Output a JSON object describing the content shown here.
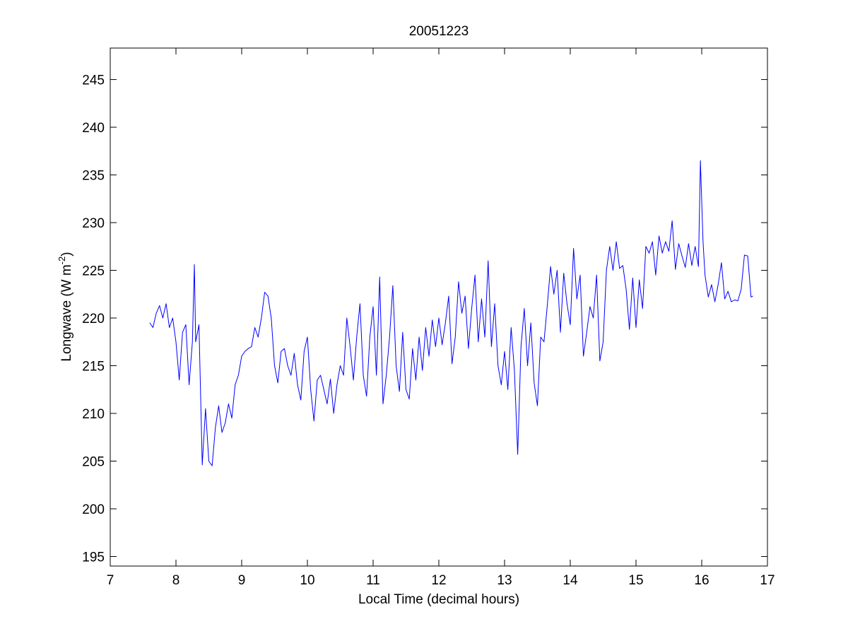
{
  "chart_data": {
    "type": "line",
    "title": "20051223",
    "xlabel": "Local Time (decimal hours)",
    "ylabel": {
      "text": "Longwave (W m",
      "superscript": "-2",
      "suffix": ")"
    },
    "xlim": [
      7,
      17
    ],
    "xticks": [
      7,
      8,
      9,
      10,
      11,
      12,
      13,
      14,
      15,
      16,
      17
    ],
    "ylim": [
      194,
      248.3
    ],
    "yticks": [
      195,
      200,
      205,
      210,
      215,
      220,
      225,
      230,
      235,
      240,
      245
    ],
    "grid": false,
    "series": [
      {
        "color": "#0000ff",
        "x": [
          7.6,
          7.65,
          7.7,
          7.75,
          7.8,
          7.85,
          7.9,
          7.95,
          8.0,
          8.05,
          8.1,
          8.15,
          8.2,
          8.25,
          8.28,
          8.3,
          8.35,
          8.4,
          8.45,
          8.5,
          8.55,
          8.6,
          8.65,
          8.7,
          8.75,
          8.8,
          8.85,
          8.9,
          8.95,
          9.0,
          9.05,
          9.1,
          9.15,
          9.2,
          9.25,
          9.3,
          9.35,
          9.4,
          9.45,
          9.5,
          9.55,
          9.6,
          9.65,
          9.7,
          9.75,
          9.8,
          9.85,
          9.9,
          9.95,
          10.0,
          10.05,
          10.1,
          10.15,
          10.2,
          10.25,
          10.3,
          10.35,
          10.4,
          10.45,
          10.5,
          10.55,
          10.6,
          10.65,
          10.7,
          10.75,
          10.8,
          10.85,
          10.9,
          10.95,
          11.0,
          11.05,
          11.1,
          11.15,
          11.2,
          11.25,
          11.3,
          11.35,
          11.4,
          11.45,
          11.5,
          11.55,
          11.6,
          11.65,
          11.7,
          11.75,
          11.8,
          11.85,
          11.9,
          11.95,
          12.0,
          12.05,
          12.1,
          12.15,
          12.2,
          12.25,
          12.3,
          12.35,
          12.4,
          12.45,
          12.5,
          12.55,
          12.6,
          12.65,
          12.7,
          12.75,
          12.8,
          12.85,
          12.9,
          12.95,
          13.0,
          13.05,
          13.1,
          13.15,
          13.2,
          13.25,
          13.3,
          13.35,
          13.4,
          13.45,
          13.5,
          13.55,
          13.6,
          13.65,
          13.7,
          13.75,
          13.8,
          13.85,
          13.9,
          13.95,
          14.0,
          14.05,
          14.1,
          14.15,
          14.2,
          14.25,
          14.3,
          14.35,
          14.4,
          14.45,
          14.5,
          14.55,
          14.6,
          14.65,
          14.7,
          14.75,
          14.8,
          14.85,
          14.9,
          14.95,
          15.0,
          15.05,
          15.1,
          15.15,
          15.2,
          15.25,
          15.3,
          15.35,
          15.4,
          15.45,
          15.5,
          15.55,
          15.6,
          15.65,
          15.7,
          15.75,
          15.8,
          15.85,
          15.9,
          15.95,
          15.98,
          16.02,
          16.05,
          16.1,
          16.15,
          16.2,
          16.25,
          16.3,
          16.35,
          16.4,
          16.45,
          16.5,
          16.55,
          16.6,
          16.65,
          16.7,
          16.75,
          16.78
        ],
        "values": [
          219.5,
          219,
          220.5,
          221.3,
          220,
          221.5,
          219,
          220,
          217.5,
          213.5,
          218.5,
          219.3,
          213,
          217.5,
          225.6,
          217.5,
          219.3,
          204.6,
          210.5,
          205,
          204.5,
          208.5,
          210.8,
          208,
          209,
          211,
          209.5,
          213,
          214,
          216,
          216.5,
          216.8,
          217,
          219,
          218,
          220,
          222.7,
          222.3,
          220,
          215,
          213.2,
          216.5,
          216.8,
          215,
          214,
          216.3,
          213,
          211.4,
          216.5,
          218,
          212.5,
          209.2,
          213.5,
          214,
          212.5,
          211,
          213.6,
          210,
          213,
          215,
          214,
          220,
          217,
          213.5,
          218,
          221.5,
          214,
          211.8,
          218,
          221.2,
          214,
          224.3,
          211,
          214,
          218,
          223.4,
          215,
          212.3,
          218.5,
          212.5,
          211.5,
          216.8,
          213.5,
          218,
          214.5,
          219,
          216,
          219.8,
          217,
          220,
          217.2,
          219.5,
          222.3,
          215.2,
          218,
          223.8,
          220.5,
          222.3,
          216.8,
          221,
          224.5,
          217.5,
          222,
          218,
          226,
          217,
          221.5,
          215,
          213,
          216.5,
          212.5,
          219,
          214.5,
          205.7,
          217,
          221,
          215,
          219.5,
          213.2,
          210.8,
          218,
          217.5,
          221.3,
          225.4,
          222.5,
          225,
          218.5,
          224.7,
          221.5,
          219.3,
          227.3,
          222,
          224.5,
          216,
          218.5,
          221.2,
          220,
          224.5,
          215.5,
          217.5,
          225,
          227.5,
          225,
          228,
          225.2,
          225.5,
          223,
          218.8,
          224.2,
          219,
          224,
          221,
          227.5,
          226.8,
          228,
          224.5,
          228.6,
          226.8,
          228,
          227,
          230.2,
          225.1,
          227.8,
          226.5,
          225.3,
          227.8,
          225.5,
          227.5,
          225.4,
          236.5,
          228,
          224.5,
          222.2,
          223.5,
          221.7,
          223.5,
          225.8,
          222,
          222.8,
          221.7,
          221.9,
          221.8,
          223,
          226.6,
          226.5,
          222.2,
          222.3
        ]
      }
    ]
  }
}
